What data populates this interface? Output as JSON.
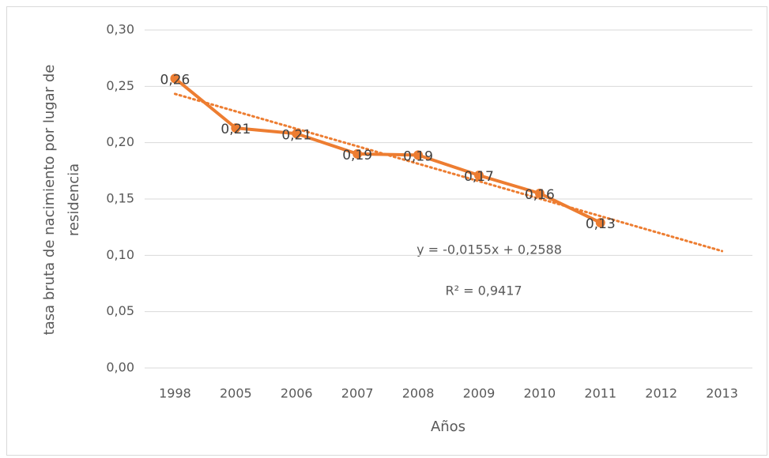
{
  "chart_data": {
    "type": "line",
    "ylabel": [
      "tasa bruta de nacimiento por  lugar de",
      "residencia"
    ],
    "xlabel": "Años",
    "categories": [
      "1998",
      "2005",
      "2006",
      "2007",
      "2008",
      "2009",
      "2010",
      "2011",
      "2012",
      "2013"
    ],
    "series": [
      {
        "name": "tasa bruta",
        "color": "#ed7d31",
        "values": [
          0.257,
          0.213,
          0.208,
          0.19,
          0.189,
          0.171,
          0.155,
          0.129,
          null,
          null
        ],
        "value_labels": [
          "0,26",
          "0,21",
          "0,21",
          "0,19",
          "0,19",
          "0,17",
          "0,16",
          "0,13",
          null,
          null
        ]
      }
    ],
    "trendline": {
      "slope": -0.0155,
      "intercept": 0.2588,
      "color": "#ed7d31",
      "equation": "y = -0,0155x + 0,2588",
      "r2": "R² = 0,9417"
    },
    "ylim": [
      0,
      0.3
    ],
    "yticks": [
      {
        "value": 0,
        "label": "0,00"
      },
      {
        "value": 0.05,
        "label": "0,05"
      },
      {
        "value": 0.1,
        "label": "0,10"
      },
      {
        "value": 0.15,
        "label": "0,15"
      },
      {
        "value": 0.2,
        "label": "0,20"
      },
      {
        "value": 0.25,
        "label": "0,25"
      },
      {
        "value": 0.3,
        "label": "0,30"
      }
    ],
    "grid": true
  }
}
